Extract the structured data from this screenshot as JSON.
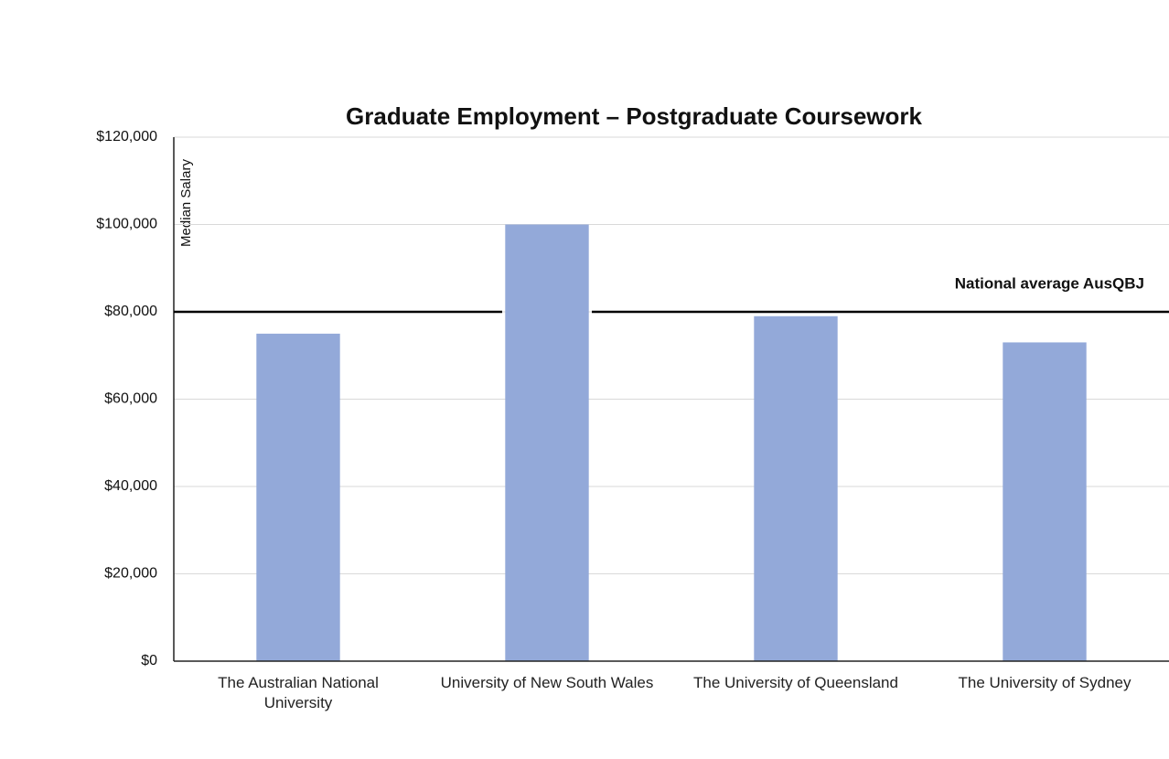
{
  "chart_data": {
    "type": "bar",
    "title": "Graduate Employment – Postgraduate Coursework",
    "y_label": "Median Salary",
    "categories": [
      "The Australian National University",
      "University of New South Wales",
      "The University of Queensland",
      "The University of Sydney"
    ],
    "values": [
      75000,
      100000,
      79000,
      73000
    ],
    "color": "#93a9d9",
    "ylim": [
      0,
      120000
    ],
    "yticks": [
      {
        "value": 0,
        "label": "$0"
      },
      {
        "value": 20000,
        "label": "$20,000"
      },
      {
        "value": 40000,
        "label": "$40,000"
      },
      {
        "value": 60000,
        "label": "$60,000"
      },
      {
        "value": 80000,
        "label": "$80,000"
      },
      {
        "value": 100000,
        "label": "$100,000"
      },
      {
        "value": 120000,
        "label": "$120,000"
      }
    ],
    "grid": true,
    "reference_line": {
      "value": 80000,
      "label": "National average AusQBJ"
    }
  }
}
